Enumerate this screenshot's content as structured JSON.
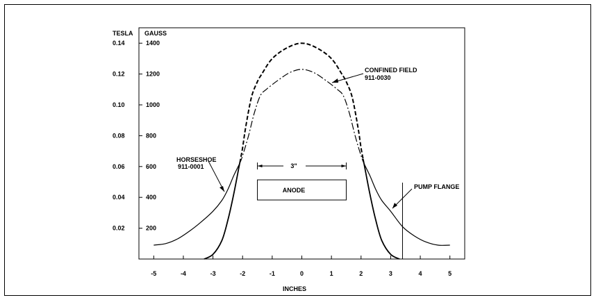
{
  "chart_data": {
    "type": "line",
    "xlabel": "INCHES",
    "ylabel_left": "TESLA",
    "ylabel_right": "GAUSS",
    "xlim": [
      -5.5,
      5.5
    ],
    "ylim": [
      0,
      0.15
    ],
    "x_ticks": [
      -5,
      -4,
      -3,
      -2,
      -1,
      0,
      1,
      2,
      3,
      4,
      5
    ],
    "x_tick_labels": [
      "-5",
      "-4",
      "-3",
      "-2",
      "-1",
      "0",
      "1",
      "2",
      "3",
      "4",
      "5"
    ],
    "y_ticks": [
      0.02,
      0.04,
      0.06,
      0.08,
      0.1,
      0.12,
      0.14
    ],
    "y_tick_labels_tesla": [
      "0.02",
      "0.04",
      "0.06",
      "0.08",
      "0.10",
      "0.12",
      "0.14"
    ],
    "y_tick_labels_gauss": [
      "200",
      "400",
      "600",
      "800",
      "1000",
      "1200",
      "1400"
    ],
    "grid": false,
    "series": [
      {
        "name": "CONFINED FIELD 911-0030",
        "style": "dashed-solid",
        "x": [
          -3.3,
          -3.0,
          -2.7,
          -2.5,
          -2.3,
          -2.1,
          -2.0,
          -1.9,
          -1.7,
          -1.5,
          -1.35,
          -1.0,
          -0.5,
          0.0,
          0.5,
          1.0,
          1.35,
          1.5,
          1.7,
          1.9,
          2.0,
          2.1,
          2.3,
          2.5,
          2.7,
          3.0,
          3.3
        ],
        "y": [
          0.0,
          0.003,
          0.012,
          0.025,
          0.042,
          0.062,
          0.072,
          0.085,
          0.105,
          0.115,
          0.12,
          0.13,
          0.137,
          0.14,
          0.137,
          0.13,
          0.12,
          0.115,
          0.105,
          0.085,
          0.072,
          0.062,
          0.042,
          0.025,
          0.012,
          0.003,
          0.0
        ]
      },
      {
        "name": "HORSESHOE 911-0001",
        "style": "dash-dot-solid",
        "x": [
          -5.0,
          -4.6,
          -4.2,
          -3.8,
          -3.4,
          -3.0,
          -2.7,
          -2.5,
          -2.3,
          -2.1,
          -2.0,
          -1.8,
          -1.6,
          -1.4,
          -1.2,
          -0.8,
          -0.4,
          0.0,
          0.4,
          0.8,
          1.2,
          1.4,
          1.6,
          1.8,
          2.0,
          2.1,
          2.3,
          2.5,
          2.7,
          3.0,
          3.4,
          3.8,
          4.2,
          4.6,
          5.0
        ],
        "y": [
          0.009,
          0.01,
          0.013,
          0.018,
          0.024,
          0.031,
          0.038,
          0.045,
          0.054,
          0.062,
          0.067,
          0.08,
          0.095,
          0.106,
          0.11,
          0.116,
          0.121,
          0.123,
          0.121,
          0.116,
          0.11,
          0.106,
          0.095,
          0.08,
          0.067,
          0.062,
          0.054,
          0.045,
          0.038,
          0.031,
          0.021,
          0.015,
          0.011,
          0.009,
          0.009
        ]
      }
    ],
    "annotations": {
      "confined_field_line1": "CONFINED FIELD",
      "confined_field_line2": "911-0030",
      "horseshoe_line1": "HORSESHOE",
      "horseshoe_line2": "911-0001",
      "dimension_label": "3\"",
      "dimension_from": -1.5,
      "dimension_to": 1.5,
      "anode_label": "ANODE",
      "anode_from": -1.5,
      "anode_to": 1.5,
      "pump_flange_label": "PUMP FLANGE",
      "pump_flange_x": 3.4
    }
  }
}
